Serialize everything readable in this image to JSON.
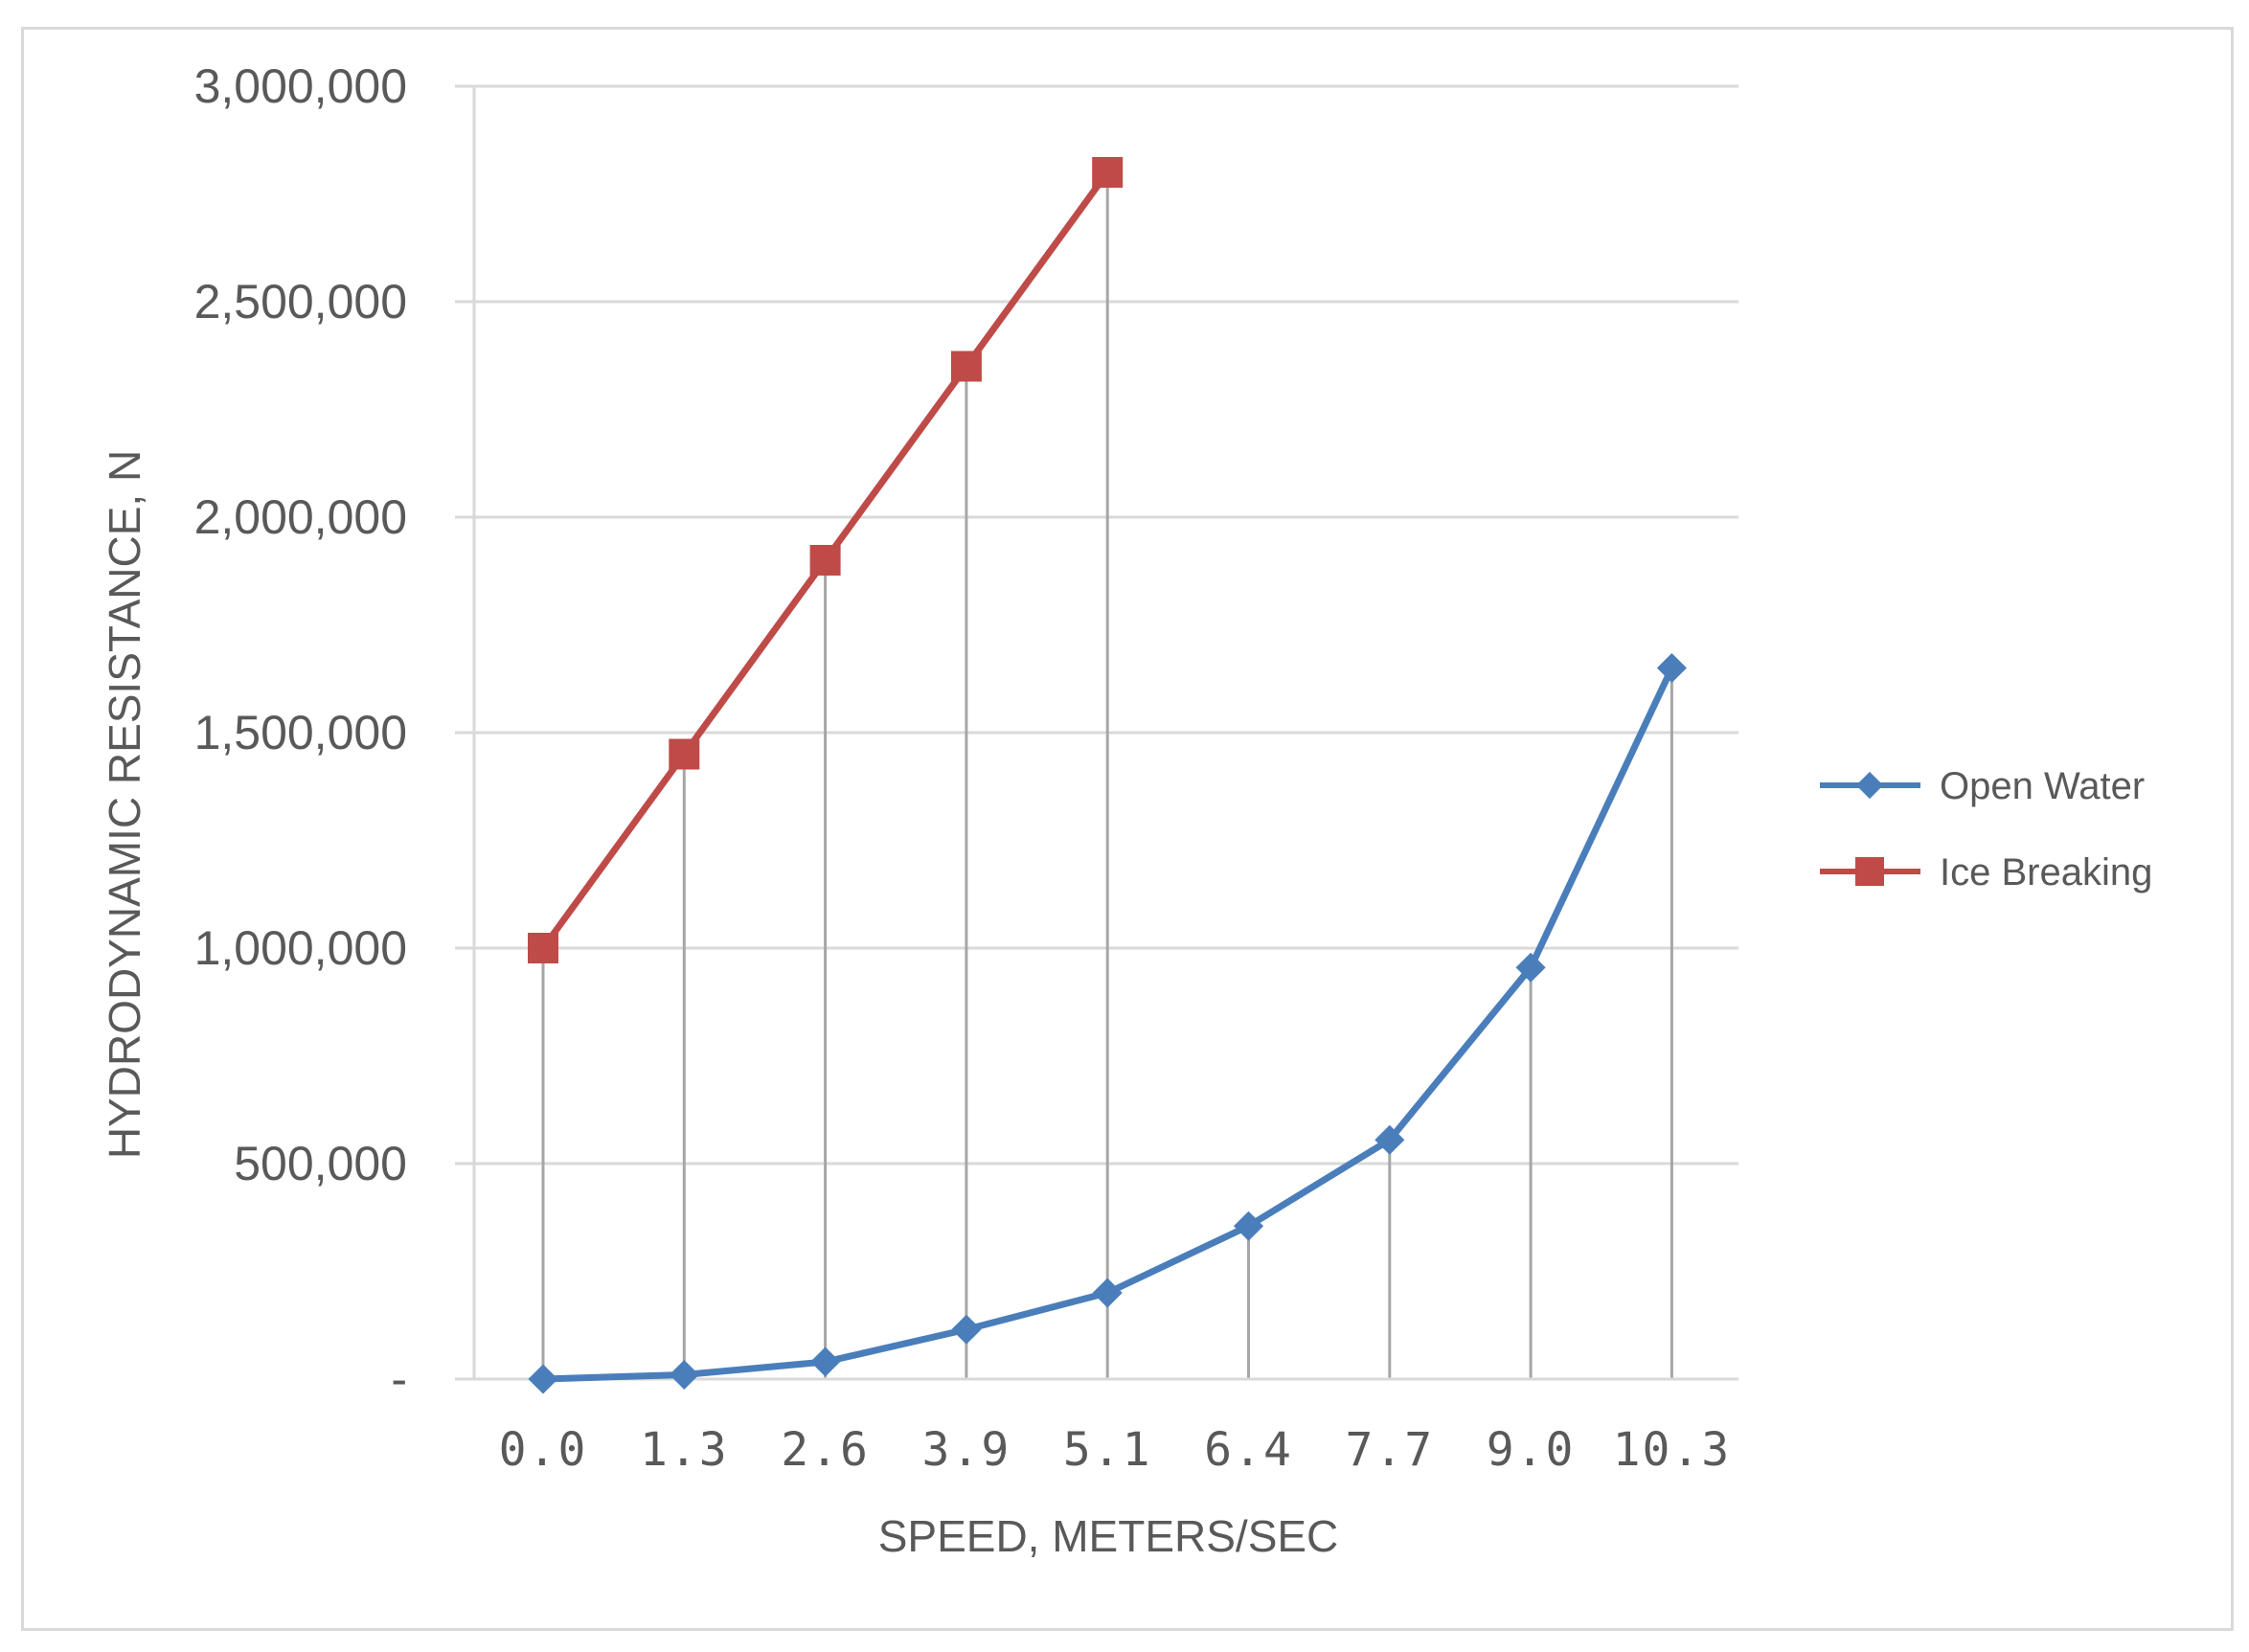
{
  "chart_data": {
    "type": "line",
    "xlabel": "SPEED, METERS/SEC",
    "ylabel": "HYDRODYNAMIC RESISTANCE, N",
    "categories": [
      "0.0",
      "1.3",
      "2.6",
      "3.9",
      "5.1",
      "6.4",
      "7.7",
      "9.0",
      "10.3"
    ],
    "ylim": [
      0,
      3000000
    ],
    "y_ticks": [
      {
        "value": 0,
        "label": "-"
      },
      {
        "value": 500000,
        "label": "500,000"
      },
      {
        "value": 1000000,
        "label": "1,000,000"
      },
      {
        "value": 1500000,
        "label": "1,500,000"
      },
      {
        "value": 2000000,
        "label": "2,000,000"
      },
      {
        "value": 2500000,
        "label": "2,500,000"
      },
      {
        "value": 3000000,
        "label": "3,000,000"
      }
    ],
    "grid": true,
    "drop_lines": true,
    "legend_position": "right",
    "series": [
      {
        "name": "Open Water",
        "color": "#4a7ebb",
        "marker": "diamond",
        "values": [
          0,
          10000,
          40000,
          115000,
          200000,
          355000,
          555000,
          955000,
          1650000
        ]
      },
      {
        "name": "Ice Breaking",
        "color": "#be4b48",
        "marker": "square",
        "values": [
          1000000,
          1450000,
          1900000,
          2350000,
          2800000,
          null,
          null,
          null,
          null
        ]
      }
    ]
  }
}
